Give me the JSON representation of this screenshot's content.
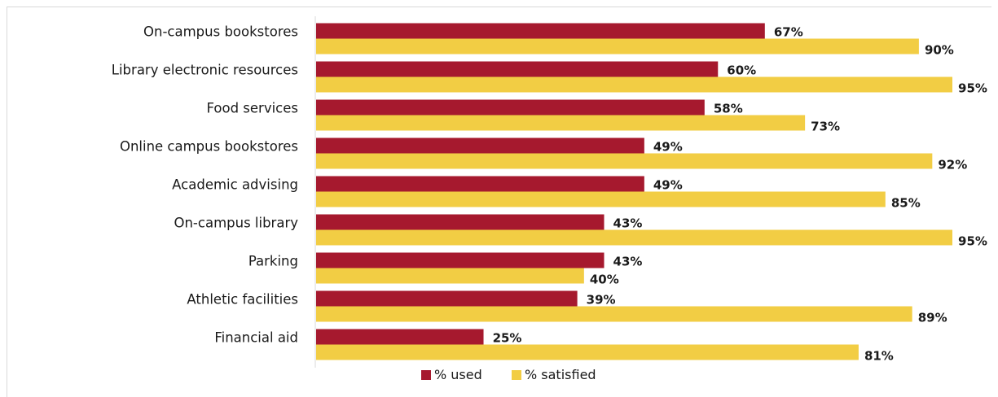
{
  "chart_data": {
    "type": "bar",
    "orientation": "horizontal",
    "categories": [
      "On-campus bookstores",
      "Library electronic resources",
      "Food services",
      "Online campus bookstores",
      "Academic advising",
      "On-campus library",
      "Parking",
      "Athletic facilities",
      "Financial aid"
    ],
    "series": [
      {
        "name": "% used",
        "color": "#a6192e",
        "values": [
          67,
          60,
          58,
          49,
          49,
          43,
          43,
          39,
          25
        ],
        "labels": [
          "67%",
          "60%",
          "58%",
          "49%",
          "49%",
          "43%",
          "43%",
          "39%",
          "25%"
        ]
      },
      {
        "name": "% satisfied",
        "color": "#f2cd44",
        "values": [
          90,
          95,
          73,
          92,
          85,
          95,
          40,
          89,
          81
        ],
        "labels": [
          "90%",
          "95%",
          "73%",
          "92%",
          "85%",
          "95%",
          "40%",
          "89%",
          "81%"
        ]
      }
    ],
    "xlim": [
      0,
      95
    ],
    "legend": {
      "position": "bottom",
      "items": [
        "% used",
        "% satisfied"
      ]
    },
    "grid": false
  }
}
